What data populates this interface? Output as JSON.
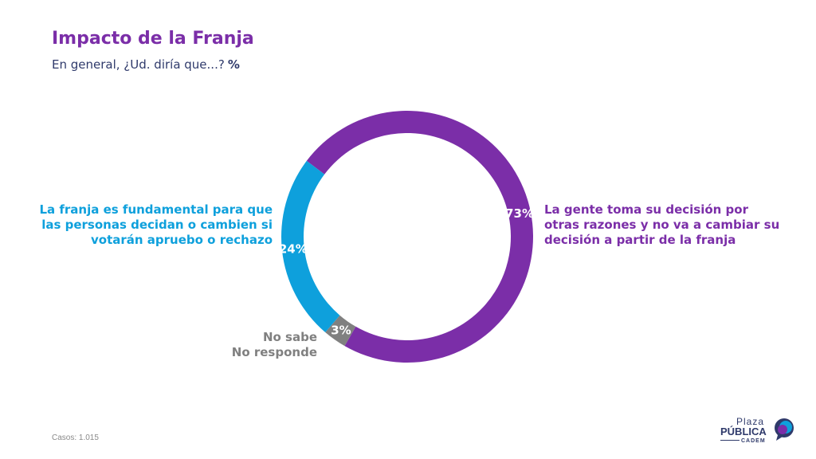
{
  "title": "Impacto de la Franja",
  "subtitle": "En general, ¿Ud. diría que...?",
  "subtitle_unit": "%",
  "footer": "Casos: 1.015",
  "logo": {
    "line1": "Plaza",
    "line2": "PÚBLICA",
    "line3": "CADEM"
  },
  "chart_data": {
    "type": "pie",
    "donut": true,
    "slices": [
      {
        "label": "La gente toma su decisión por otras razones y no va a cambiar su decisión a partir de la franja",
        "value": 73,
        "value_label": "73%",
        "color": "#7b2ea8"
      },
      {
        "label": "No sabe No responde",
        "value": 3,
        "value_label": "3%",
        "color": "#808080"
      },
      {
        "label": "La franja es fundamental para que las personas decidan o cambien si votarán apruebo o rechazo",
        "value": 24,
        "value_label": "24%",
        "color": "#0ea0dc"
      }
    ]
  }
}
